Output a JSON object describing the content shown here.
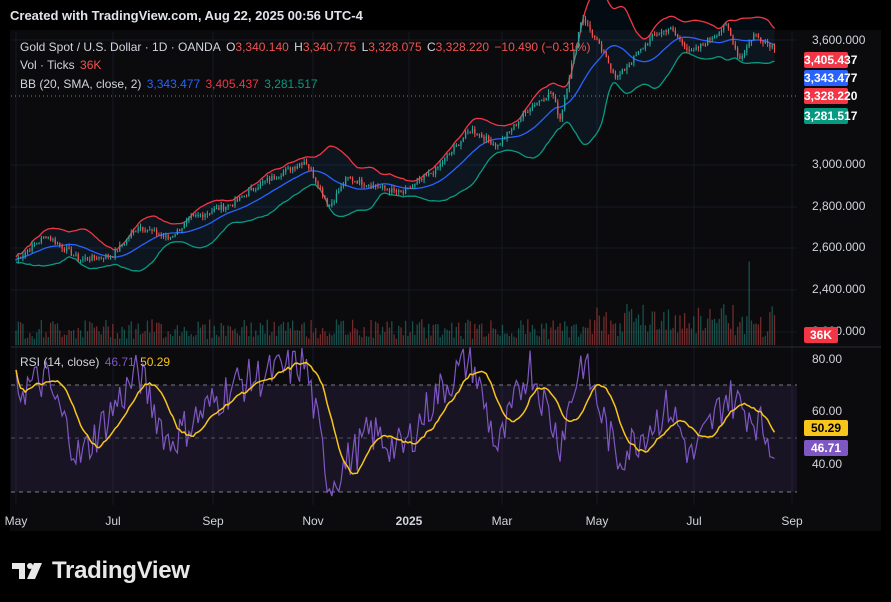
{
  "header": {
    "title": "Created with TradingView.com, Aug 22, 2025 00:56 UTC-4"
  },
  "main_legend": {
    "symbol": "Gold Spot / U.S. Dollar · 1D · OANDA",
    "o_label": "O",
    "o_value": "3,340.140",
    "h_label": "H",
    "h_value": "3,340.775",
    "l_label": "L",
    "l_value": "3,328.075",
    "c_label": "C",
    "c_value": "3,328.220",
    "change": "−10.490 (−0.31%)"
  },
  "vol_legend": {
    "label": "Vol · Ticks",
    "value": "36K"
  },
  "bb_legend": {
    "label": "BB (20, SMA, close, 2)",
    "basis": "3,343.477",
    "upper": "3,405.437",
    "lower": "3,281.517"
  },
  "rsi_legend": {
    "label": "RSI (14, close)",
    "rsi": "46.71",
    "ma": "50.29"
  },
  "price_axis": {
    "ticks": [
      "3,600.000",
      "3,000.000",
      "2,800.000",
      "2,600.000",
      "2,400.000",
      "2,000.000"
    ],
    "badges": {
      "upper": "3,405.437",
      "basis": "3,343.477",
      "last": "3,328.220",
      "lower": "3,281.517",
      "volume": "36K"
    }
  },
  "rsi_axis": {
    "ticks": [
      "80.00",
      "60.00",
      "40.00"
    ],
    "badges": {
      "ma": "50.29",
      "rsi": "46.71"
    }
  },
  "time_axis": {
    "labels": [
      "May",
      "Jul",
      "Sep",
      "Nov",
      "2025",
      "Mar",
      "May",
      "Jul",
      "Sep"
    ]
  },
  "colors": {
    "up": "#26a69a",
    "down": "#ef5350",
    "bb_upper": "#f23645",
    "bb_basis": "#2962ff",
    "bb_lower": "#089981",
    "rsi": "#7e57c2",
    "rsi_ma": "#f7c51b"
  },
  "footer": {
    "brand": "TradingView"
  },
  "chart_data": {
    "type": "candlestick",
    "symbol": "XAUUSD",
    "timeframe": "1D",
    "x_range": [
      "2024-05",
      "2025-09"
    ],
    "price_range": [
      2300,
      3600
    ],
    "close_path": [
      [
        "2024-05-01",
        2310
      ],
      [
        "2024-05-20",
        2425
      ],
      [
        "2024-06-10",
        2310
      ],
      [
        "2024-07-01",
        2330
      ],
      [
        "2024-07-17",
        2470
      ],
      [
        "2024-08-05",
        2410
      ],
      [
        "2024-08-20",
        2510
      ],
      [
        "2024-09-15",
        2580
      ],
      [
        "2024-09-30",
        2665
      ],
      [
        "2024-10-30",
        2785
      ],
      [
        "2024-11-14",
        2565
      ],
      [
        "2024-11-25",
        2700
      ],
      [
        "2024-12-10",
        2670
      ],
      [
        "2024-12-30",
        2625
      ],
      [
        "2025-01-20",
        2740
      ],
      [
        "2025-02-11",
        2935
      ],
      [
        "2025-02-28",
        2855
      ],
      [
        "2025-03-20",
        3040
      ],
      [
        "2025-04-03",
        3115
      ],
      [
        "2025-04-08",
        2980
      ],
      [
        "2025-04-22",
        3480
      ],
      [
        "2025-05-14",
        3180
      ],
      [
        "2025-06-05",
        3380
      ],
      [
        "2025-06-16",
        3420
      ],
      [
        "2025-06-30",
        3300
      ],
      [
        "2025-07-22",
        3435
      ],
      [
        "2025-07-30",
        3270
      ],
      [
        "2025-08-08",
        3390
      ],
      [
        "2025-08-21",
        3328
      ]
    ],
    "rsi_path": [
      [
        "2024-05-01",
        68
      ],
      [
        "2024-05-20",
        72
      ],
      [
        "2024-06-10",
        42
      ],
      [
        "2024-07-17",
        75
      ],
      [
        "2024-08-05",
        48
      ],
      [
        "2024-09-15",
        70
      ],
      [
        "2024-10-30",
        78
      ],
      [
        "2024-11-14",
        32
      ],
      [
        "2024-12-10",
        52
      ],
      [
        "2024-12-30",
        45
      ],
      [
        "2025-01-20",
        66
      ],
      [
        "2025-02-11",
        80
      ],
      [
        "2025-02-28",
        45
      ],
      [
        "2025-03-20",
        78
      ],
      [
        "2025-04-08",
        48
      ],
      [
        "2025-04-22",
        80
      ],
      [
        "2025-05-14",
        42
      ],
      [
        "2025-06-16",
        62
      ],
      [
        "2025-06-30",
        42
      ],
      [
        "2025-07-22",
        66
      ],
      [
        "2025-08-08",
        58
      ],
      [
        "2025-08-21",
        46.71
      ]
    ],
    "rsi_levels": [
      70,
      30
    ],
    "rsi_range": [
      20,
      90
    ]
  }
}
